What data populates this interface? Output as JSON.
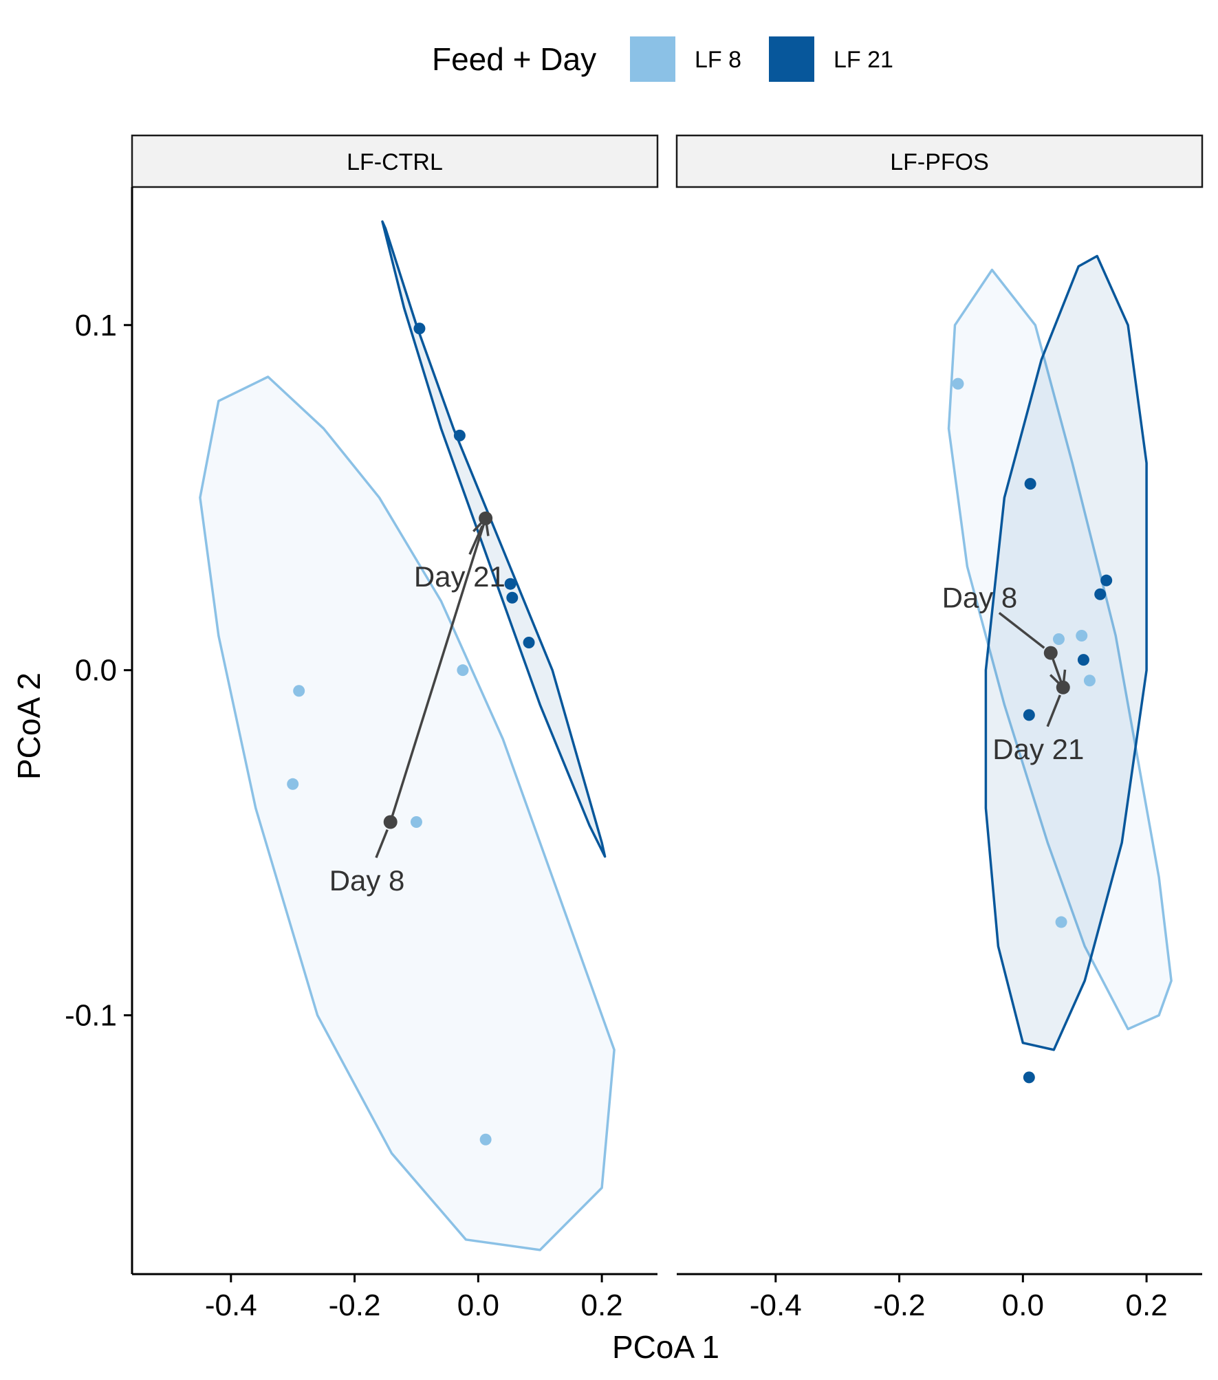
{
  "chart_data": {
    "type": "scatter",
    "xlabel": "PCoA 1",
    "ylabel": "PCoA 2",
    "xlim": [
      -0.56,
      0.29
    ],
    "ylim": [
      -0.175,
      0.14
    ],
    "x_ticks": [
      -0.4,
      -0.2,
      0.0,
      0.2
    ],
    "x_tick_labels": [
      "-0.4",
      "-0.2",
      "0.0",
      "0.2"
    ],
    "y_ticks": [
      -0.1,
      0.0,
      0.1
    ],
    "y_tick_labels": [
      "-0.1",
      "0.0",
      "0.1"
    ],
    "grid": false,
    "legend": {
      "title": "Feed + Day",
      "position": "top",
      "entries": [
        {
          "label": "LF 8",
          "color": "#8bc1e6"
        },
        {
          "label": "LF 21",
          "color": "#07579b"
        }
      ]
    },
    "colors": {
      "LF 8": "#8bc1e6",
      "LF 21": "#07579b",
      "centroid": "#444444"
    },
    "panels": [
      {
        "strip": "LF-CTRL",
        "series": [
          {
            "name": "LF 8",
            "points": [
              [
                -0.29,
                -0.006
              ],
              [
                -0.3,
                -0.033
              ],
              [
                -0.1,
                -0.044
              ],
              [
                -0.025,
                0.0
              ],
              [
                0.012,
                -0.136
              ]
            ]
          },
          {
            "name": "LF 21",
            "points": [
              [
                -0.095,
                0.099
              ],
              [
                -0.03,
                0.068
              ],
              [
                0.052,
                0.025
              ],
              [
                0.055,
                0.021
              ],
              [
                0.082,
                0.008
              ]
            ]
          }
        ],
        "centroids": {
          "Day 8": [
            -0.142,
            -0.044
          ],
          "Day 21": [
            0.012,
            0.044
          ]
        },
        "ellipses": [
          {
            "series": "LF 8",
            "polygon": [
              [
                -0.34,
                0.085
              ],
              [
                -0.25,
                0.07
              ],
              [
                -0.16,
                0.05
              ],
              [
                -0.06,
                0.02
              ],
              [
                0.04,
                -0.02
              ],
              [
                0.14,
                -0.07
              ],
              [
                0.22,
                -0.11
              ],
              [
                0.2,
                -0.15
              ],
              [
                0.1,
                -0.168
              ],
              [
                -0.02,
                -0.165
              ],
              [
                -0.14,
                -0.14
              ],
              [
                -0.26,
                -0.1
              ],
              [
                -0.36,
                -0.04
              ],
              [
                -0.42,
                0.01
              ],
              [
                -0.45,
                0.05
              ],
              [
                -0.42,
                0.078
              ]
            ]
          },
          {
            "series": "LF 21",
            "polygon": [
              [
                -0.15,
                0.128
              ],
              [
                -0.1,
                0.1
              ],
              [
                -0.04,
                0.07
              ],
              [
                0.04,
                0.035
              ],
              [
                0.12,
                0.0
              ],
              [
                0.2,
                -0.05
              ],
              [
                0.205,
                -0.054
              ],
              [
                0.18,
                -0.045
              ],
              [
                0.1,
                -0.01
              ],
              [
                0.02,
                0.03
              ],
              [
                -0.06,
                0.07
              ],
              [
                -0.12,
                0.105
              ],
              [
                -0.155,
                0.13
              ]
            ]
          }
        ],
        "annotations": [
          {
            "text": "Day 21",
            "at": [
              -0.03,
              0.027
            ]
          },
          {
            "text": "Day 8",
            "at": [
              -0.18,
              -0.061
            ]
          }
        ]
      },
      {
        "strip": "LF-PFOS",
        "series": [
          {
            "name": "LF 8",
            "points": [
              [
                -0.105,
                0.083
              ],
              [
                0.058,
                0.009
              ],
              [
                0.095,
                0.01
              ],
              [
                0.108,
                -0.003
              ],
              [
                0.062,
                -0.073
              ]
            ]
          },
          {
            "name": "LF 21",
            "points": [
              [
                0.012,
                0.054
              ],
              [
                0.135,
                0.026
              ],
              [
                0.125,
                0.022
              ],
              [
                0.098,
                0.003
              ],
              [
                0.01,
                -0.013
              ],
              [
                0.01,
                -0.118
              ]
            ]
          }
        ],
        "centroids": {
          "Day 8": [
            0.045,
            0.005
          ],
          "Day 21": [
            0.065,
            -0.005
          ]
        },
        "ellipses": [
          {
            "series": "LF 8",
            "polygon": [
              [
                -0.05,
                0.116
              ],
              [
                0.02,
                0.1
              ],
              [
                0.08,
                0.06
              ],
              [
                0.15,
                0.01
              ],
              [
                0.22,
                -0.06
              ],
              [
                0.24,
                -0.09
              ],
              [
                0.22,
                -0.1
              ],
              [
                0.17,
                -0.104
              ],
              [
                0.1,
                -0.08
              ],
              [
                0.04,
                -0.05
              ],
              [
                -0.03,
                -0.01
              ],
              [
                -0.09,
                0.03
              ],
              [
                -0.12,
                0.07
              ],
              [
                -0.11,
                0.1
              ]
            ]
          },
          {
            "series": "LF 21",
            "polygon": [
              [
                0.12,
                0.12
              ],
              [
                0.17,
                0.1
              ],
              [
                0.2,
                0.06
              ],
              [
                0.2,
                0.0
              ],
              [
                0.16,
                -0.05
              ],
              [
                0.1,
                -0.09
              ],
              [
                0.05,
                -0.11
              ],
              [
                0.0,
                -0.108
              ],
              [
                -0.04,
                -0.08
              ],
              [
                -0.06,
                -0.04
              ],
              [
                -0.06,
                0.0
              ],
              [
                -0.03,
                0.05
              ],
              [
                0.03,
                0.09
              ],
              [
                0.09,
                0.117
              ]
            ]
          }
        ],
        "annotations": [
          {
            "text": "Day 8",
            "at": [
              -0.07,
              0.021
            ]
          },
          {
            "text": "Day 21",
            "at": [
              0.025,
              -0.023
            ]
          }
        ]
      }
    ]
  }
}
